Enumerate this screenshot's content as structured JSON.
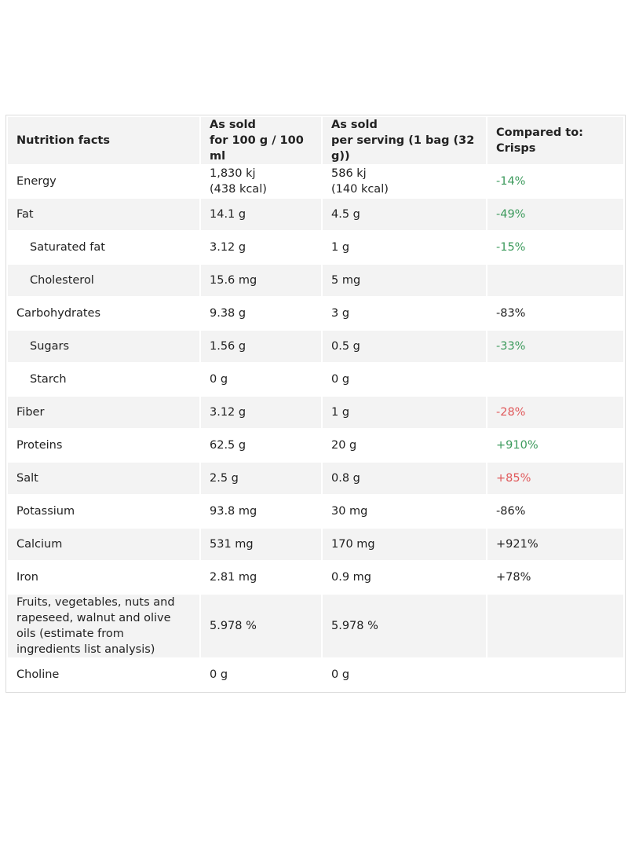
{
  "table": {
    "header": [
      [
        "Nutrition facts"
      ],
      [
        "As sold",
        "for 100 g / 100 ml"
      ],
      [
        "As sold",
        "per serving (1 bag (32 g))"
      ],
      [
        "Compared to: Crisps"
      ]
    ],
    "rows": [
      {
        "name": "Energy",
        "per_100g": [
          "1,830 kj",
          "(438 kcal)"
        ],
        "per_serving": [
          "586 kj",
          "(140 kcal)"
        ],
        "compare": "-14%",
        "compare_color": "#3c9a5c"
      },
      {
        "name": "Fat",
        "per_100g": [
          "14.1 g"
        ],
        "per_serving": [
          "4.5 g"
        ],
        "compare": "-49%",
        "compare_color": "#3c9a5c"
      },
      {
        "name": "Saturated fat",
        "indent": true,
        "per_100g": [
          "3.12 g"
        ],
        "per_serving": [
          "1 g"
        ],
        "compare": "-15%",
        "compare_color": "#3c9a5c"
      },
      {
        "name": "Cholesterol",
        "indent": true,
        "per_100g": [
          "15.6 mg"
        ],
        "per_serving": [
          "5 mg"
        ]
      },
      {
        "name": "Carbohydrates",
        "per_100g": [
          "9.38 g"
        ],
        "per_serving": [
          "3 g"
        ],
        "compare": "-83%"
      },
      {
        "name": "Sugars",
        "indent": true,
        "per_100g": [
          "1.56 g"
        ],
        "per_serving": [
          "0.5 g"
        ],
        "compare": "-33%",
        "compare_color": "#3c9a5c"
      },
      {
        "name": "Starch",
        "indent": true,
        "per_100g": [
          "0 g"
        ],
        "per_serving": [
          "0 g"
        ]
      },
      {
        "name": "Fiber",
        "per_100g": [
          "3.12 g"
        ],
        "per_serving": [
          "1 g"
        ],
        "compare": "-28%",
        "compare_color": "#e0585a"
      },
      {
        "name": "Proteins",
        "per_100g": [
          "62.5 g"
        ],
        "per_serving": [
          "20 g"
        ],
        "compare": "+910%",
        "compare_color": "#3c9a5c"
      },
      {
        "name": "Salt",
        "per_100g": [
          "2.5 g"
        ],
        "per_serving": [
          "0.8 g"
        ],
        "compare": "+85%",
        "compare_color": "#e0585a"
      },
      {
        "name": "Potassium",
        "per_100g": [
          "93.8 mg"
        ],
        "per_serving": [
          "30 mg"
        ],
        "compare": "-86%"
      },
      {
        "name": "Calcium",
        "per_100g": [
          "531 mg"
        ],
        "per_serving": [
          "170 mg"
        ],
        "compare": "+921%"
      },
      {
        "name": "Iron",
        "per_100g": [
          "2.81 mg"
        ],
        "per_serving": [
          "0.9 mg"
        ],
        "compare": "+78%"
      },
      {
        "name": "Fruits, vegetables, nuts and rapeseed, walnut and olive oils (estimate from ingredients list analysis)",
        "per_100g": [
          "5.978 %"
        ],
        "per_serving": [
          "5.978 %"
        ]
      },
      {
        "name": "Choline",
        "per_100g": [
          "0 g"
        ],
        "per_serving": [
          "0 g"
        ]
      }
    ]
  }
}
